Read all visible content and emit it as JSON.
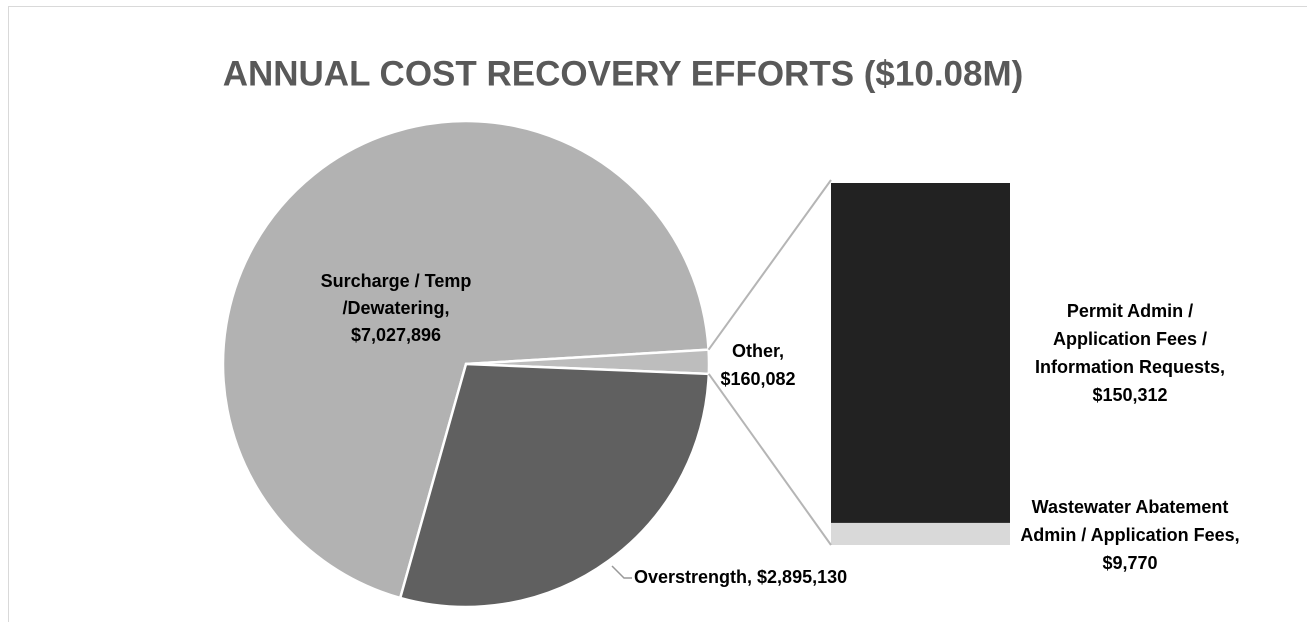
{
  "chart_data": {
    "type": "pie-of-bar",
    "title": "ANNUAL COST RECOVERY EFFORTS ($10.08M)",
    "categories": [
      "Surcharge / Temp /Dewatering,",
      "Other,",
      "Overstrength,"
    ],
    "values": [
      7027896,
      160082,
      2895130
    ],
    "value_labels": [
      "$7,027,896",
      "$160,082",
      "$2,895,130"
    ],
    "colors": [
      "#b2b2b2",
      "#bdbdbd",
      "#606060"
    ],
    "breakdown": {
      "categories": [
        "Wastewater Abatement Admin / Application Fees,",
        "Permit Admin / Application Fees / Information Requests,"
      ],
      "values": [
        9770,
        150312
      ],
      "value_labels": [
        "$9,770",
        "$150,312"
      ],
      "colors": [
        "#d9d9d9",
        "#222222"
      ]
    }
  }
}
